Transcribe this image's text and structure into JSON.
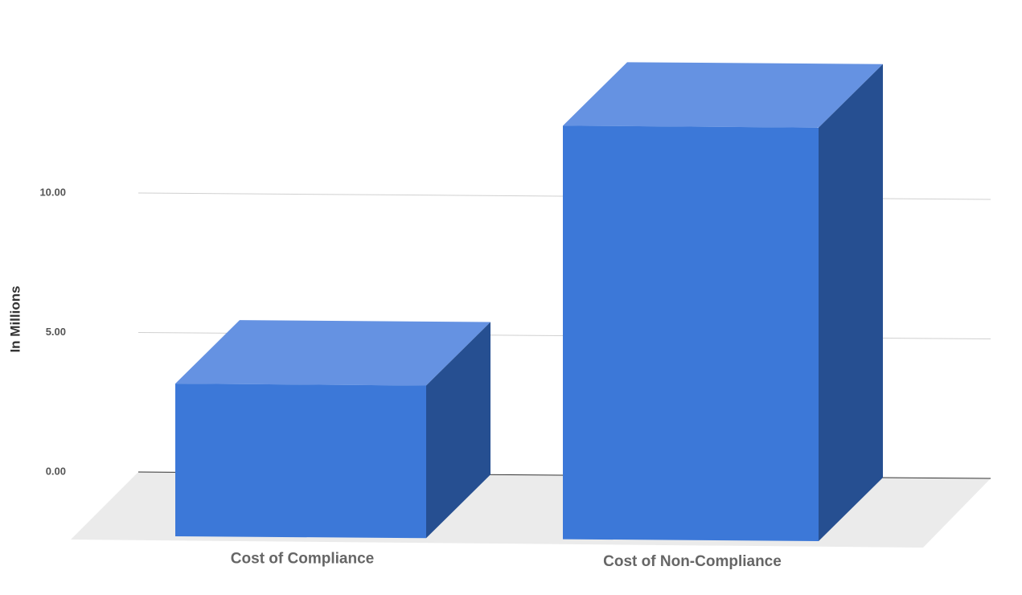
{
  "chart_data": {
    "type": "bar3d",
    "y_label": "In Millions",
    "categories": [
      "Cost of Compliance",
      "Cost of Non-Compliance"
    ],
    "values": [
      5.47,
      14.82
    ],
    "color": "#3c78d8",
    "ylim": [
      0,
      15
    ],
    "yticks": [
      {
        "value": 0,
        "label": "0.00"
      },
      {
        "value": 5,
        "label": "5.00"
      },
      {
        "value": 10,
        "label": "10.00"
      }
    ],
    "grid": true
  }
}
